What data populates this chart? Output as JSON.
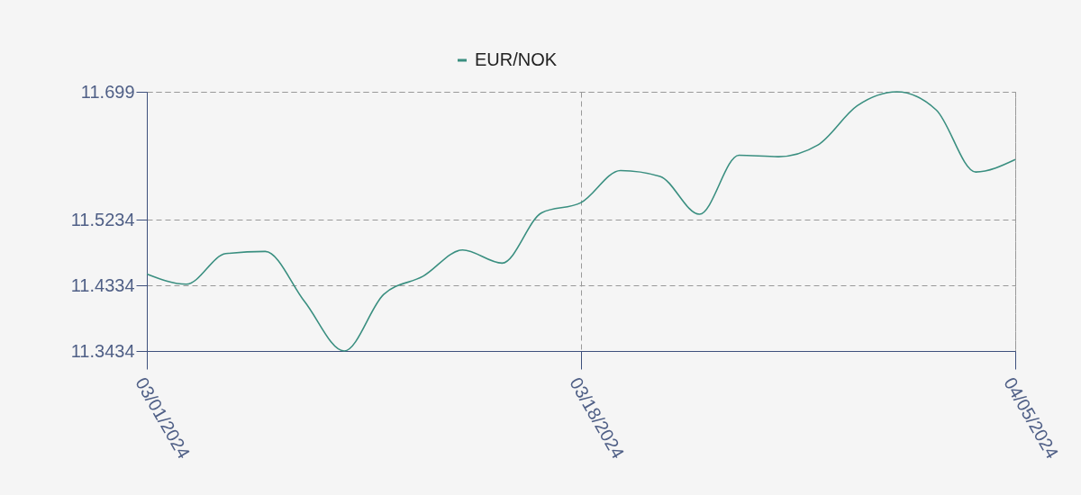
{
  "chart_data": {
    "type": "line",
    "categories": [
      "03/01/2024",
      null,
      null,
      null,
      null,
      null,
      null,
      null,
      null,
      null,
      null,
      "03/18/2024",
      null,
      null,
      null,
      null,
      null,
      null,
      null,
      null,
      null,
      null,
      "04/05/2024"
    ],
    "series": [
      {
        "name": "EUR/NOK",
        "color": "#3a8f80",
        "values": [
          11.449,
          11.435,
          11.477,
          11.48,
          11.411,
          11.3434,
          11.421,
          11.446,
          11.482,
          11.464,
          11.533,
          11.547,
          11.591,
          11.583,
          11.531,
          11.612,
          11.61,
          11.626,
          11.68,
          11.699,
          11.674,
          11.589,
          11.606
        ]
      }
    ],
    "ylim": [
      11.3434,
      11.699
    ],
    "yticks": [
      11.3434,
      11.4334,
      11.5234,
      11.699
    ],
    "grid": true,
    "legend": "top",
    "line_style": "solid"
  }
}
